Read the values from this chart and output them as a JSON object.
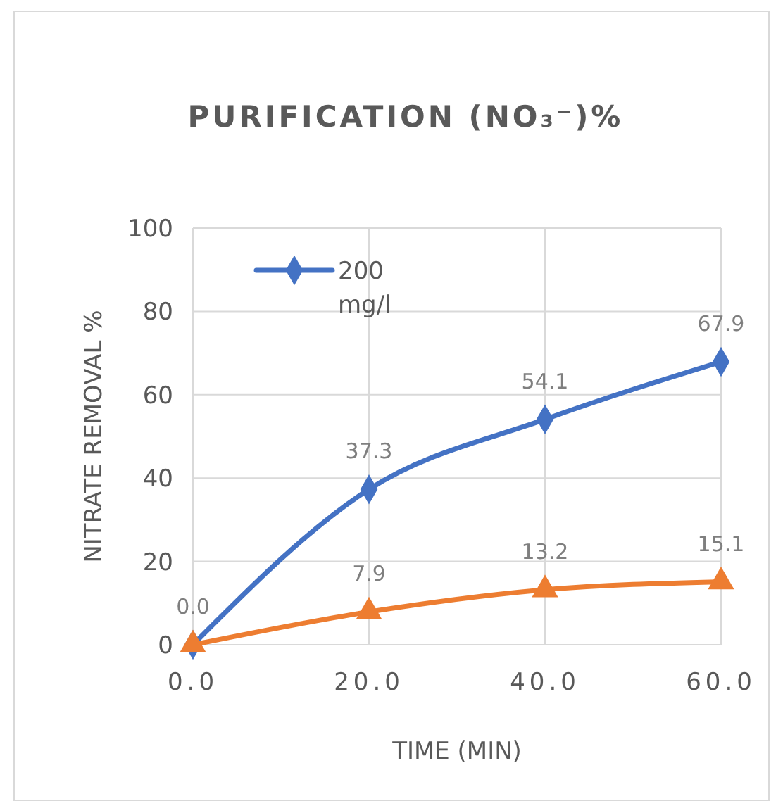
{
  "chart_data": {
    "type": "line",
    "title": "PURIFICATION (NO₃⁻)%",
    "xlabel": "TIME (MIN)",
    "ylabel": "NITRATE REMOVAL %",
    "x": [
      0,
      20,
      40,
      60
    ],
    "series": [
      {
        "name": "200 mg/l",
        "color": "#4472c4",
        "marker": "diamond",
        "values": [
          0,
          37.3,
          54.1,
          67.9
        ],
        "value_labels": [
          "0.0",
          "37.3",
          "54.1",
          "67.9"
        ]
      },
      {
        "color": "#ed7d31",
        "marker": "triangle",
        "values": [
          0,
          7.9,
          13.2,
          15.1
        ],
        "value_labels": [
          null,
          "7.9",
          "13.2",
          "15.1"
        ]
      }
    ],
    "xlim": [
      0,
      60
    ],
    "xticks": [
      {
        "value": 0,
        "label": "0.0"
      },
      {
        "value": 20,
        "label": "20.0"
      },
      {
        "value": 40,
        "label": "40.0"
      },
      {
        "value": 60,
        "label": "60.0"
      }
    ],
    "ylim": [
      0,
      100
    ],
    "yticks": [
      0,
      20,
      40,
      60,
      80,
      100
    ],
    "grid": true,
    "legend": "top left",
    "line_style": "solid"
  }
}
